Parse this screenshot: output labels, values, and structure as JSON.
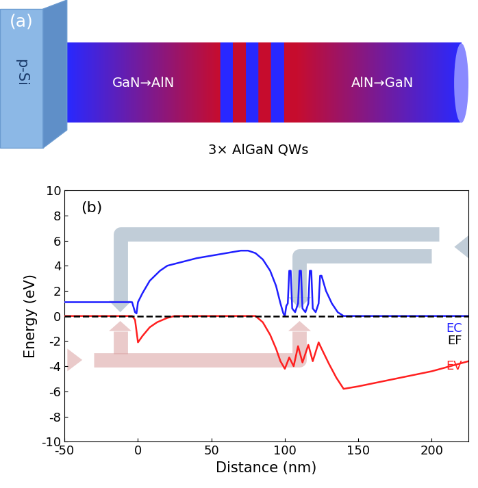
{
  "panel_a": {
    "label": "(a)",
    "substrate": "p-Si",
    "left_segment": "GaN→AlN",
    "right_segment": "AlN→GaN",
    "wells": "3× AlGaN QWs"
  },
  "chart_data": {
    "type": "line",
    "panel_label": "(b)",
    "xlabel": "Distance (nm)",
    "ylabel": "Energy (eV)",
    "xlim": [
      -50,
      225
    ],
    "xticks": [
      -50,
      0,
      50,
      100,
      150,
      200
    ],
    "ylim": [
      -10,
      10
    ],
    "yticks": [
      -10,
      -8,
      -6,
      -4,
      -2,
      0,
      2,
      4,
      6,
      8,
      10
    ],
    "series": [
      {
        "name": "EC",
        "color": "#1f1fff",
        "line_style": "solid",
        "x": [
          -50,
          -4,
          -2,
          -1,
          0,
          3,
          8,
          15,
          20,
          30,
          40,
          50,
          60,
          70,
          75,
          80,
          85,
          90,
          94,
          97,
          99,
          100,
          101,
          102,
          103,
          104,
          105,
          107,
          109,
          110,
          111,
          112,
          114,
          116,
          117,
          118,
          119,
          121,
          123,
          124,
          125,
          128,
          132,
          136,
          140,
          225
        ],
        "values": [
          1.1,
          1.1,
          0.3,
          0.2,
          1.1,
          1.8,
          2.8,
          3.6,
          4.0,
          4.3,
          4.6,
          4.8,
          5.0,
          5.2,
          5.2,
          5.0,
          4.5,
          3.6,
          2.4,
          1.0,
          0.2,
          0.0,
          0.8,
          1.0,
          3.6,
          3.6,
          0.6,
          0.3,
          1.0,
          3.6,
          3.6,
          0.6,
          0.3,
          1.0,
          3.6,
          3.6,
          0.6,
          0.3,
          1.0,
          3.2,
          3.2,
          2.0,
          1.0,
          0.3,
          0.0,
          0.0
        ]
      },
      {
        "name": "EV",
        "color": "#ff1f1f",
        "line_style": "solid",
        "x": [
          -50,
          -4,
          -2,
          0,
          3,
          8,
          13,
          20,
          25,
          80,
          85,
          90,
          94,
          97,
          100,
          103,
          106,
          109,
          112,
          116,
          119,
          123,
          125,
          130,
          135,
          140,
          150,
          175,
          200,
          225
        ],
        "values": [
          0.0,
          0.0,
          -0.3,
          -2.1,
          -1.6,
          -0.9,
          -0.5,
          -0.15,
          0.0,
          0.0,
          -0.5,
          -1.5,
          -2.6,
          -3.6,
          -4.2,
          -3.3,
          -4.0,
          -2.4,
          -3.7,
          -2.3,
          -3.6,
          -2.1,
          -2.6,
          -3.8,
          -4.9,
          -5.8,
          -5.6,
          -5.0,
          -4.4,
          -3.6
        ]
      },
      {
        "name": "EF",
        "color": "#000000",
        "line_style": "dashed",
        "x": [
          -50,
          225
        ],
        "values": [
          0.0,
          0.0
        ]
      }
    ]
  }
}
